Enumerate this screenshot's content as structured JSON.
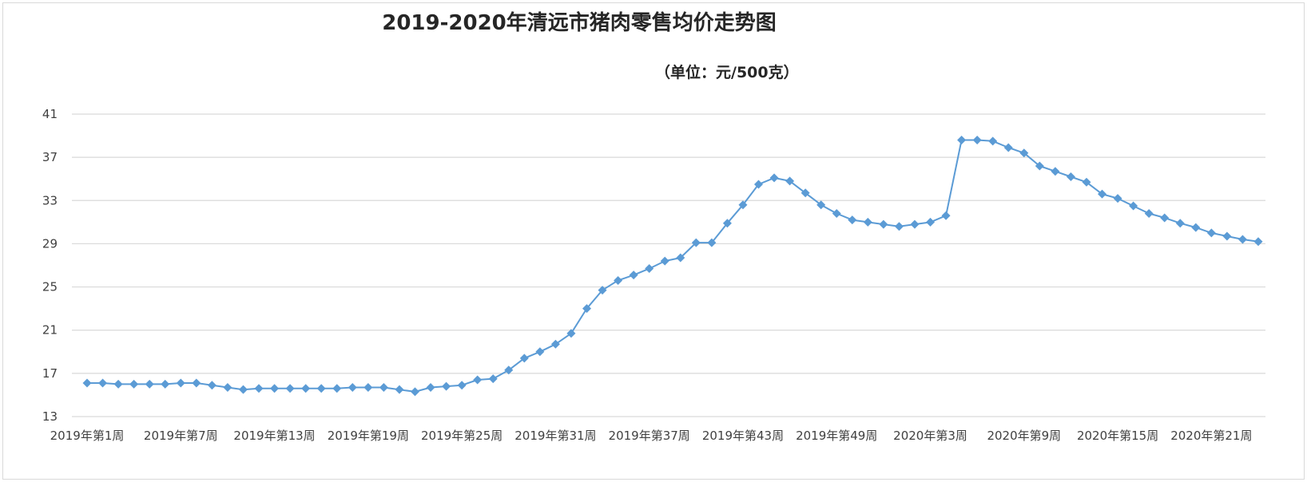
{
  "chart_data": {
    "type": "line",
    "title": "2019-2020年清远市猪肉零售均价走势图",
    "subtitle": "（单位：元/500克）",
    "ylim": [
      13,
      41
    ],
    "yticks": [
      13,
      17,
      21,
      25,
      29,
      33,
      37,
      41
    ],
    "grid": true,
    "x_tick_labels": [
      "2019年第1周",
      "2019年第7周",
      "2019年第13周",
      "2019年第19周",
      "2019年第25周",
      "2019年第31周",
      "2019年第37周",
      "2019年第43周",
      "2019年第49周",
      "2020年第3周",
      "2020年第9周",
      "2020年第15周",
      "2020年第21周"
    ],
    "series": [
      {
        "marker": "diamond",
        "color": "#5b9bd5",
        "values": [
          16.1,
          16.1,
          16.0,
          16.0,
          16.0,
          16.0,
          16.1,
          16.1,
          15.9,
          15.7,
          15.5,
          15.6,
          15.6,
          15.6,
          15.6,
          15.6,
          15.6,
          15.7,
          15.7,
          15.7,
          15.5,
          15.3,
          15.7,
          15.8,
          15.9,
          16.4,
          16.5,
          17.3,
          18.4,
          19.0,
          19.7,
          20.7,
          23.0,
          24.7,
          25.6,
          26.1,
          26.7,
          27.4,
          27.7,
          29.1,
          29.1,
          30.9,
          32.6,
          34.5,
          35.1,
          34.8,
          33.7,
          32.6,
          31.8,
          31.2,
          31.0,
          30.8,
          30.6,
          30.8,
          31.0,
          31.6,
          38.6,
          38.6,
          38.5,
          37.9,
          37.4,
          36.2,
          35.7,
          35.2,
          34.7,
          33.6,
          33.2,
          32.5,
          31.8,
          31.4,
          30.9,
          30.5,
          30.0,
          29.7,
          29.4,
          29.2
        ]
      }
    ]
  }
}
